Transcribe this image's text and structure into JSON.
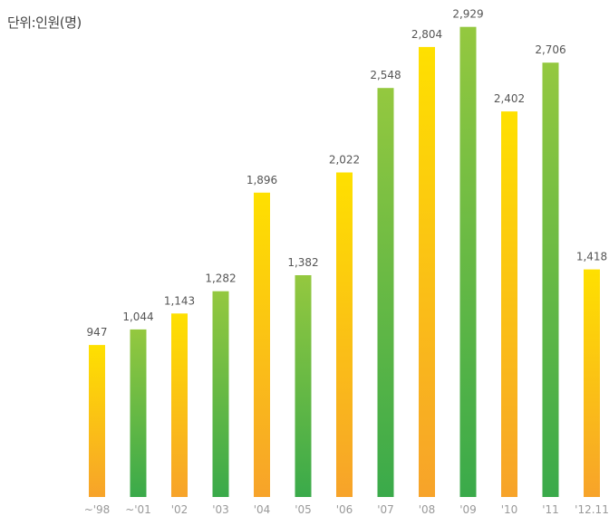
{
  "unit_label": "단위:인원(명)",
  "colors": {
    "yellow_top": "#fee000",
    "yellow_bottom": "#f7a32a",
    "green_top": "#94c83f",
    "green_bottom": "#3aaa4a",
    "value_text": "#555555",
    "tick_text": "#999999"
  },
  "chart_data": {
    "type": "bar",
    "title": "",
    "xlabel": "",
    "ylabel": "단위:인원(명)",
    "ylim": [
      0,
      3000
    ],
    "categories": [
      "~'98",
      "~'01",
      "'02",
      "'03",
      "'04",
      "'05",
      "'06",
      "'07",
      "'08",
      "'09",
      "'10",
      "'11",
      "'12.11"
    ],
    "values": [
      947,
      1044,
      1143,
      1282,
      1896,
      1382,
      2022,
      2548,
      2804,
      2929,
      2402,
      2706,
      1418
    ],
    "value_labels": [
      "947",
      "1,044",
      "1,143",
      "1,282",
      "1,896",
      "1,382",
      "2,022",
      "2,548",
      "2,804",
      "2,929",
      "2,402",
      "2,706",
      "1,418"
    ],
    "bar_color_scheme": [
      "yellow",
      "green",
      "yellow",
      "green",
      "yellow",
      "green",
      "yellow",
      "green",
      "yellow",
      "green",
      "yellow",
      "green",
      "yellow"
    ],
    "grid": false,
    "legend": "none"
  }
}
